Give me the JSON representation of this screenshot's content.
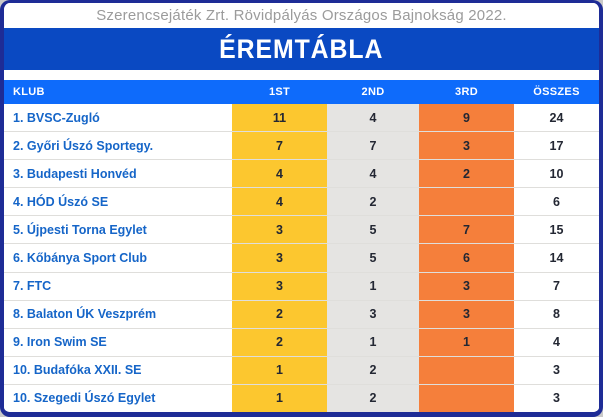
{
  "banner": {
    "title": "Szerencsejáték Zrt. Rövidpályás Országos Bajnokság 2022."
  },
  "header": {
    "title": "ÉREMTÁBLA"
  },
  "table": {
    "columns": [
      "KLUB",
      "1ST",
      "2ND",
      "3RD",
      "ÖSSZES"
    ],
    "rows": [
      {
        "club": "1. BVSC-Zugló",
        "gold": "11",
        "silver": "4",
        "bronze": "9",
        "total": "24"
      },
      {
        "club": "2. Győri Úszó Sportegy.",
        "gold": "7",
        "silver": "7",
        "bronze": "3",
        "total": "17"
      },
      {
        "club": "3. Budapesti Honvéd",
        "gold": "4",
        "silver": "4",
        "bronze": "2",
        "total": "10"
      },
      {
        "club": "4. HÓD Úszó SE",
        "gold": "4",
        "silver": "2",
        "bronze": "",
        "total": "6"
      },
      {
        "club": "5. Újpesti Torna Egylet",
        "gold": "3",
        "silver": "5",
        "bronze": "7",
        "total": "15"
      },
      {
        "club": "6. Kőbánya Sport Club",
        "gold": "3",
        "silver": "5",
        "bronze": "6",
        "total": "14"
      },
      {
        "club": "7. FTC",
        "gold": "3",
        "silver": "1",
        "bronze": "3",
        "total": "7"
      },
      {
        "club": "8. Balaton ÚK Veszprém",
        "gold": "2",
        "silver": "3",
        "bronze": "3",
        "total": "8"
      },
      {
        "club": "9. Iron Swim SE",
        "gold": "2",
        "silver": "1",
        "bronze": "1",
        "total": "4"
      },
      {
        "club": "10. Budafóka XXII. SE",
        "gold": "1",
        "silver": "2",
        "bronze": "",
        "total": "3"
      },
      {
        "club": "10. Szegedi Úszó Egylet",
        "gold": "1",
        "silver": "2",
        "bronze": "",
        "total": "3"
      }
    ]
  },
  "colors": {
    "card_border": "#1e2c96",
    "title_band": "#0a49c2",
    "header_row": "#0e6bfb",
    "gold_column": "#fcc72f",
    "silver_column": "#e5e4e2",
    "bronze_column": "#f57f3b",
    "club_text": "#1565c8",
    "banner_text": "#9b9b9b"
  },
  "chart_data": {
    "type": "table",
    "title": "ÉREMTÁBLA",
    "subtitle": "Szerencsejáték Zrt. Rövidpályás Országos Bajnokság 2022.",
    "columns": [
      "KLUB",
      "1ST",
      "2ND",
      "3RD",
      "ÖSSZES"
    ],
    "rows": [
      [
        "1. BVSC-Zugló",
        11,
        4,
        9,
        24
      ],
      [
        "2. Győri Úszó Sportegy.",
        7,
        7,
        3,
        17
      ],
      [
        "3. Budapesti Honvéd",
        4,
        4,
        2,
        10
      ],
      [
        "4. HÓD Úszó SE",
        4,
        2,
        null,
        6
      ],
      [
        "5. Újpesti Torna Egylet",
        3,
        5,
        7,
        15
      ],
      [
        "6. Kőbánya Sport Club",
        3,
        5,
        6,
        14
      ],
      [
        "7. FTC",
        3,
        1,
        3,
        7
      ],
      [
        "8. Balaton ÚK Veszprém",
        2,
        3,
        3,
        8
      ],
      [
        "9. Iron Swim SE",
        2,
        1,
        1,
        4
      ],
      [
        "10. Budafóka XXII. SE",
        1,
        2,
        null,
        3
      ],
      [
        "10. Szegedi Úszó Egylet",
        1,
        2,
        null,
        3
      ]
    ]
  }
}
